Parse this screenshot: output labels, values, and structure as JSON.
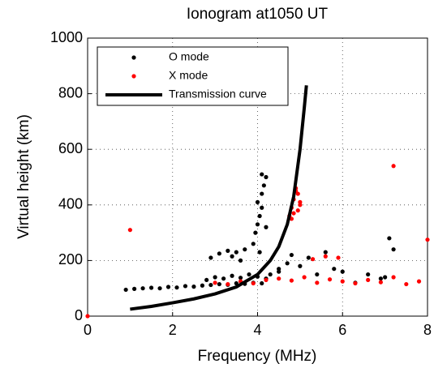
{
  "chart_data": {
    "type": "scatter",
    "title": "Ionogram at1050 UT",
    "xlabel": "Frequency (MHz)",
    "ylabel": "Virtual height (km)",
    "xlim": [
      0,
      8
    ],
    "ylim": [
      0,
      1000
    ],
    "xticks": [
      0,
      2,
      4,
      6,
      8
    ],
    "yticks": [
      0,
      200,
      400,
      600,
      800,
      1000
    ],
    "grid": true,
    "legend": "upper left",
    "series": [
      {
        "name": "O mode",
        "color": "#000000",
        "type": "scatter",
        "x": [
          0.9,
          1.1,
          1.3,
          1.5,
          1.7,
          1.9,
          2.1,
          2.3,
          2.5,
          2.7,
          2.9,
          3.1,
          3.3,
          3.5,
          3.7,
          3.9,
          4.1,
          2.8,
          3.0,
          3.2,
          3.4,
          3.6,
          3.8,
          4.0,
          4.2,
          3.9,
          3.95,
          4.0,
          4.05,
          4.1,
          4.0,
          4.1,
          4.15,
          4.05,
          4.2,
          4.1,
          4.2,
          2.9,
          3.1,
          3.3,
          3.5,
          3.7,
          3.4,
          3.6,
          4.3,
          4.5,
          4.7,
          4.5,
          4.8,
          5.0,
          5.2,
          5.4,
          5.6,
          5.8,
          6.0,
          6.3,
          6.6,
          7.0,
          7.1,
          7.2,
          6.9
        ],
        "values": [
          95,
          98,
          100,
          102,
          100,
          105,
          103,
          108,
          106,
          110,
          112,
          115,
          113,
          118,
          116,
          120,
          118,
          130,
          140,
          135,
          145,
          138,
          150,
          142,
          135,
          260,
          300,
          330,
          360,
          390,
          410,
          440,
          470,
          230,
          500,
          510,
          320,
          210,
          225,
          235,
          230,
          240,
          215,
          200,
          150,
          170,
          190,
          160,
          220,
          180,
          210,
          150,
          230,
          170,
          160,
          120,
          150,
          140,
          280,
          240,
          135
        ]
      },
      {
        "name": "X mode",
        "color": "#ff0000",
        "type": "scatter",
        "x": [
          0,
          1.0,
          7.2,
          8.0,
          7.8,
          4.75,
          4.8,
          4.85,
          4.9,
          4.95,
          5.0,
          4.85,
          4.9,
          4.95,
          5.0,
          4.8,
          3.0,
          3.3,
          3.6,
          3.9,
          4.2,
          4.5,
          4.8,
          5.1,
          5.4,
          5.7,
          6.0,
          6.3,
          6.6,
          6.9,
          7.2,
          7.5,
          5.3,
          5.6,
          5.9
        ],
        "values": [
          0,
          310,
          540,
          275,
          125,
          360,
          390,
          420,
          450,
          440,
          400,
          370,
          460,
          380,
          410,
          350,
          120,
          115,
          125,
          118,
          130,
          135,
          128,
          140,
          120,
          132,
          125,
          118,
          130,
          122,
          140,
          115,
          205,
          215,
          210
        ]
      },
      {
        "name": "Transmission curve",
        "color": "#000000",
        "type": "line",
        "x": [
          1,
          1.5,
          2,
          2.5,
          3,
          3.5,
          4,
          4.3,
          4.5,
          4.7,
          4.85,
          5.0,
          5.1,
          5.15
        ],
        "values": [
          25,
          35,
          48,
          62,
          80,
          105,
          150,
          200,
          250,
          330,
          430,
          600,
          750,
          830
        ]
      }
    ]
  }
}
